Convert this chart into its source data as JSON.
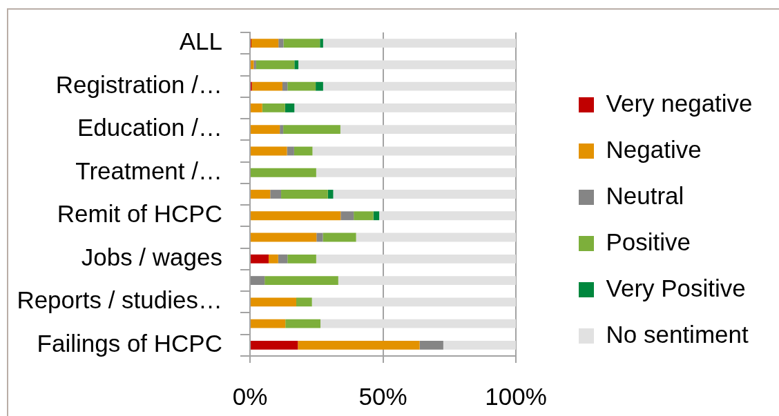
{
  "chart_data": {
    "type": "bar",
    "orientation": "horizontal",
    "stacked": true,
    "categories": [
      "ALL",
      null,
      "Registration /…",
      null,
      "Education /…",
      null,
      "Treatment /…",
      null,
      "Remit of HCPC",
      null,
      "Jobs / wages",
      null,
      "Reports / studies…",
      null,
      "Failings of HCPC"
    ],
    "series": [
      {
        "name": "Very negative",
        "color": "#c00000",
        "values": [
          0.5,
          0,
          0.7,
          0,
          0,
          0,
          0,
          0,
          0,
          0,
          7.0,
          0,
          0,
          0,
          18.0
        ]
      },
      {
        "name": "Negative",
        "color": "#e39200",
        "values": [
          10.2,
          1.4,
          11.5,
          4.6,
          11.2,
          13.9,
          0,
          7.6,
          34.1,
          25.0,
          3.6,
          0,
          17.4,
          13.3,
          45.8
        ]
      },
      {
        "name": "Neutral",
        "color": "#858585",
        "values": [
          1.9,
          0.9,
          1.9,
          0,
          1.3,
          2.7,
          0,
          4.1,
          4.9,
          2.4,
          3.5,
          5.5,
          0,
          0,
          8.9
        ]
      },
      {
        "name": "Positive",
        "color": "#7daf3b",
        "values": [
          13.7,
          14.4,
          10.6,
          8.6,
          21.5,
          6.9,
          24.9,
          17.6,
          7.4,
          12.5,
          10.8,
          27.7,
          5.9,
          13.2,
          0
        ]
      },
      {
        "name": "Very Positive",
        "color": "#00873e",
        "values": [
          1.2,
          1.5,
          2.8,
          3.5,
          0,
          0,
          0,
          2.0,
          2.2,
          0,
          0,
          0,
          0,
          0,
          0
        ]
      },
      {
        "name": "No sentiment",
        "color": "#e1e1e1",
        "values": [
          72.5,
          81.8,
          72.5,
          83.3,
          66.0,
          76.5,
          75.1,
          68.7,
          51.4,
          60.1,
          75.1,
          66.8,
          76.7,
          73.5,
          27.3
        ]
      }
    ],
    "xlim": [
      0,
      100
    ],
    "xticks": [
      {
        "value": 0,
        "label": "0%"
      },
      {
        "value": 50,
        "label": "50%"
      },
      {
        "value": 100,
        "label": "100%"
      }
    ],
    "grid": "x",
    "legend": "right"
  }
}
